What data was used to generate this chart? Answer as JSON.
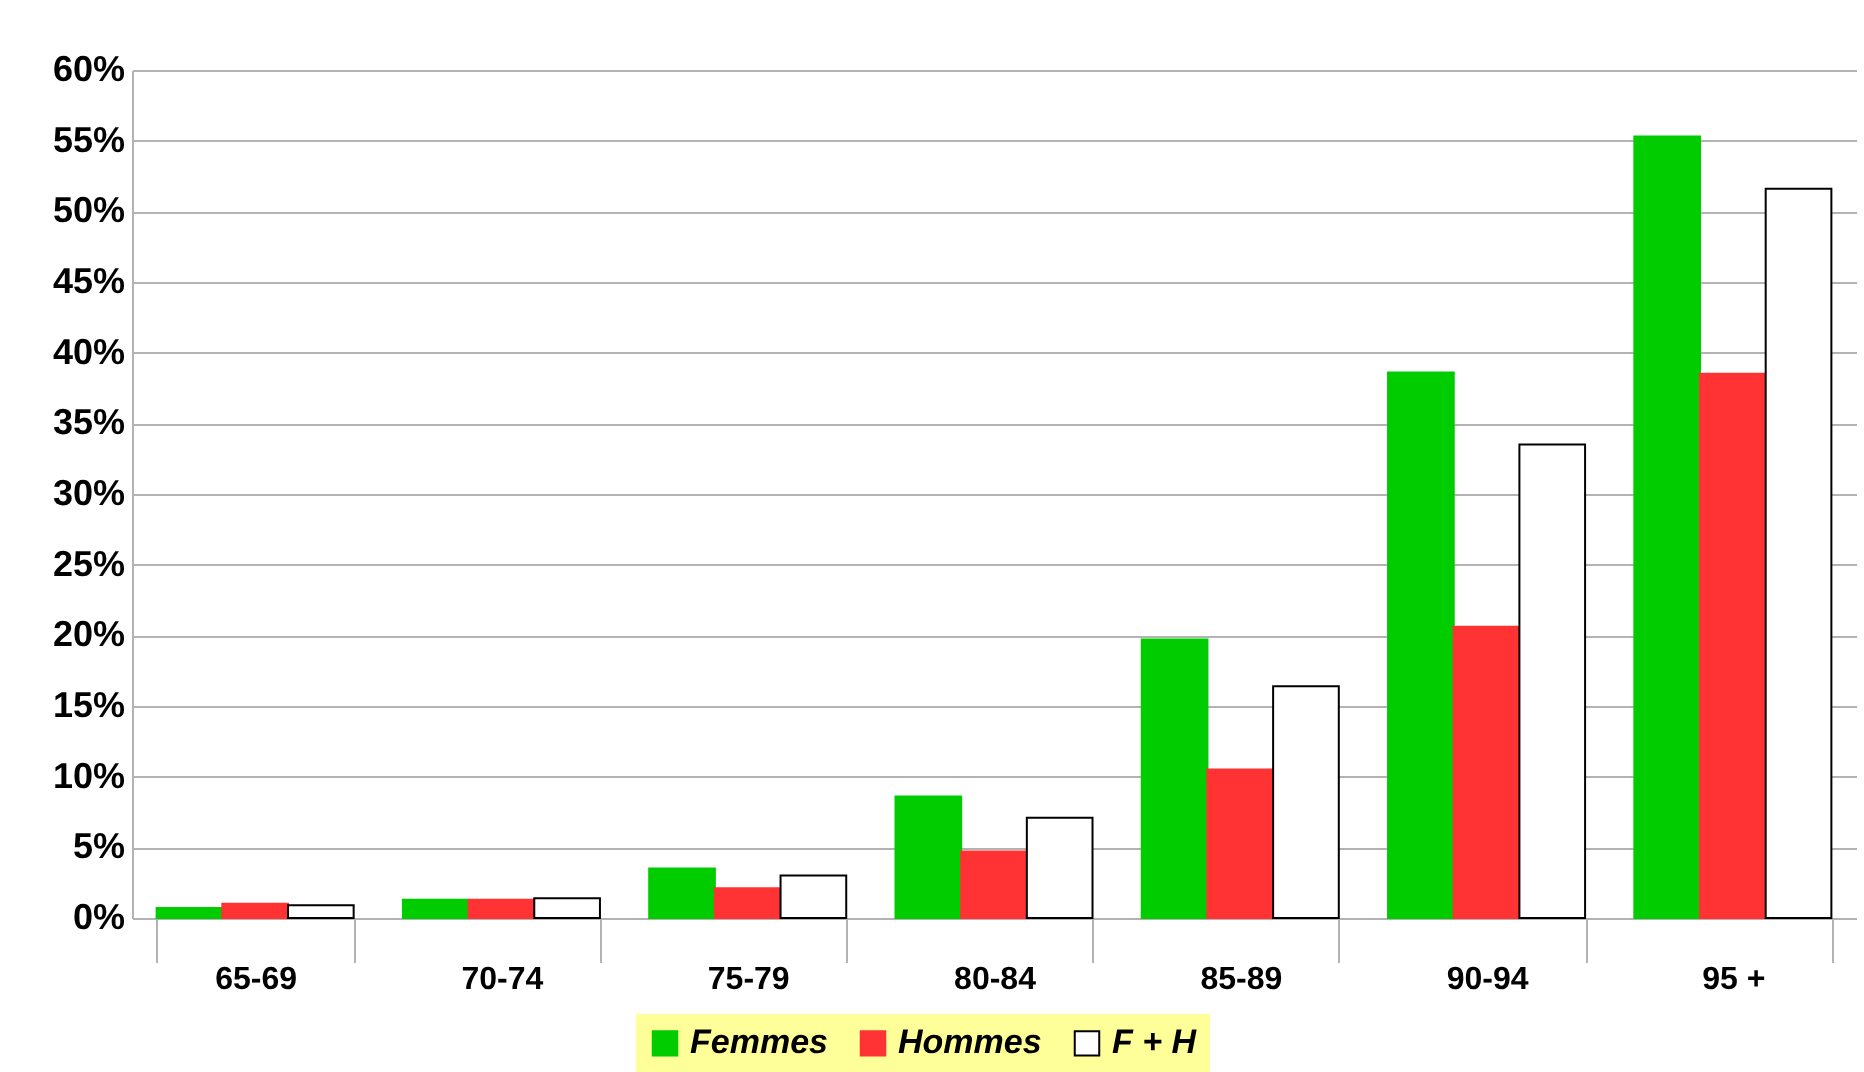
{
  "chart_data": {
    "type": "bar",
    "categories": [
      "65-69",
      "70-74",
      "75-79",
      "80-84",
      "85-89",
      "90-94",
      "95 +"
    ],
    "series": [
      {
        "name": "Femmes",
        "color": "#00cc00",
        "values": [
          0.7,
          1.3,
          3.5,
          8.6,
          19.7,
          38.6,
          55.3
        ]
      },
      {
        "name": "Hommes",
        "color": "#ff3333",
        "values": [
          1.0,
          1.3,
          2.1,
          4.7,
          10.5,
          20.6,
          38.5
        ]
      },
      {
        "name": "F + H",
        "color": "#ffffff",
        "values": [
          0.9,
          1.4,
          3.0,
          7.1,
          16.4,
          33.5,
          51.6
        ]
      }
    ],
    "ylim": [
      0,
      60
    ],
    "yticks": [
      {
        "value": 0,
        "label": "0%"
      },
      {
        "value": 5,
        "label": "5%"
      },
      {
        "value": 10,
        "label": "10%"
      },
      {
        "value": 15,
        "label": "15%"
      },
      {
        "value": 20,
        "label": "20%"
      },
      {
        "value": 25,
        "label": "25%"
      },
      {
        "value": 30,
        "label": "30%"
      },
      {
        "value": 35,
        "label": "35%"
      },
      {
        "value": 40,
        "label": "40%"
      },
      {
        "value": 45,
        "label": "45%"
      },
      {
        "value": 50,
        "label": "50%"
      },
      {
        "value": 55,
        "label": "55%"
      },
      {
        "value": 60,
        "label": "60%"
      }
    ],
    "grid": "y",
    "legend": "bottom"
  }
}
